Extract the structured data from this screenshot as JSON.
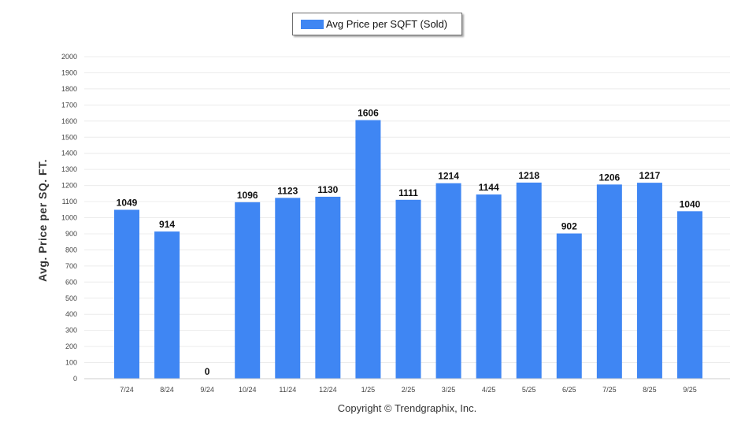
{
  "chart_data": {
    "type": "bar",
    "categories": [
      "7/24",
      "8/24",
      "9/24",
      "10/24",
      "11/24",
      "12/24",
      "1/25",
      "2/25",
      "3/25",
      "4/25",
      "5/25",
      "6/25",
      "7/25",
      "8/25",
      "9/25"
    ],
    "series": [
      {
        "name": "Avg Price per SQFT (Sold)",
        "values": [
          1049,
          914,
          0,
          1096,
          1123,
          1130,
          1606,
          1111,
          1214,
          1144,
          1218,
          902,
          1206,
          1217,
          1040
        ],
        "color": "#3f86f3"
      }
    ],
    "ylabel": "Avg. Price per SQ. FT.",
    "ylim": [
      0,
      2000
    ],
    "yticks": [
      0,
      100,
      200,
      300,
      400,
      500,
      600,
      700,
      800,
      900,
      1000,
      1100,
      1200,
      1300,
      1400,
      1500,
      1600,
      1700,
      1800,
      1900,
      2000
    ],
    "grid": true,
    "legend_position": "top-center"
  },
  "footer": "Copyright © Trendgraphix, Inc."
}
